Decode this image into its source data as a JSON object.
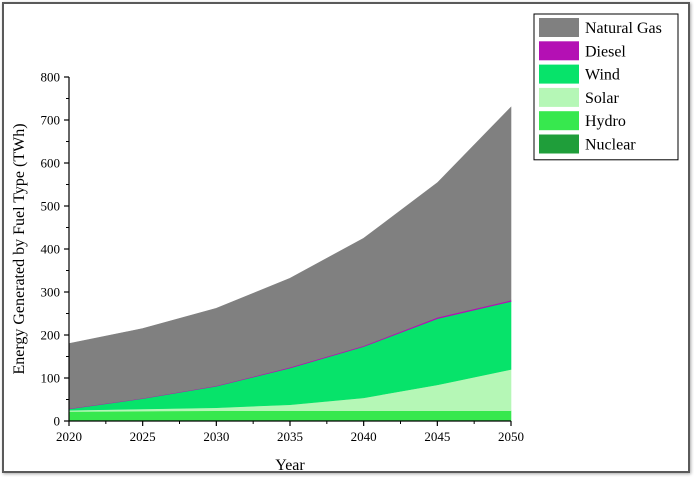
{
  "chart_data": {
    "type": "area",
    "stacked": true,
    "title": "",
    "xlabel": "Year",
    "ylabel": "Energy Generated by Fuel Type (TWh)",
    "x": [
      2020,
      2025,
      2030,
      2035,
      2040,
      2045,
      2050
    ],
    "xlim": [
      2020,
      2050
    ],
    "ylim": [
      0,
      800
    ],
    "xticks": [
      2020,
      2025,
      2030,
      2035,
      2040,
      2045,
      2050
    ],
    "yticks": [
      0,
      100,
      200,
      300,
      400,
      500,
      600,
      700,
      800
    ],
    "grid": false,
    "legend_position": "top-right",
    "series": [
      {
        "name": "Nuclear",
        "color": "#1f9e3a",
        "values": [
          0,
          0,
          0,
          0,
          0,
          0,
          0
        ]
      },
      {
        "name": "Hydro",
        "color": "#37e84e",
        "values": [
          22,
          23,
          24,
          24,
          24,
          24,
          24
        ]
      },
      {
        "name": "Solar",
        "color": "#b5f7b6",
        "values": [
          3,
          5,
          7,
          14,
          30,
          60,
          96
        ]
      },
      {
        "name": "Wind",
        "color": "#07e36a",
        "values": [
          3,
          24,
          50,
          85,
          119,
          154,
          158
        ]
      },
      {
        "name": "Diesel",
        "color": "#b410b4",
        "values": [
          1,
          1,
          1,
          2,
          2,
          3,
          3
        ]
      },
      {
        "name": "Natural Gas",
        "color": "#808080",
        "values": [
          151,
          162,
          180,
          207,
          250,
          313,
          449
        ]
      }
    ],
    "legend_order": [
      "Natural Gas",
      "Diesel",
      "Wind",
      "Solar",
      "Hydro",
      "Nuclear"
    ]
  }
}
